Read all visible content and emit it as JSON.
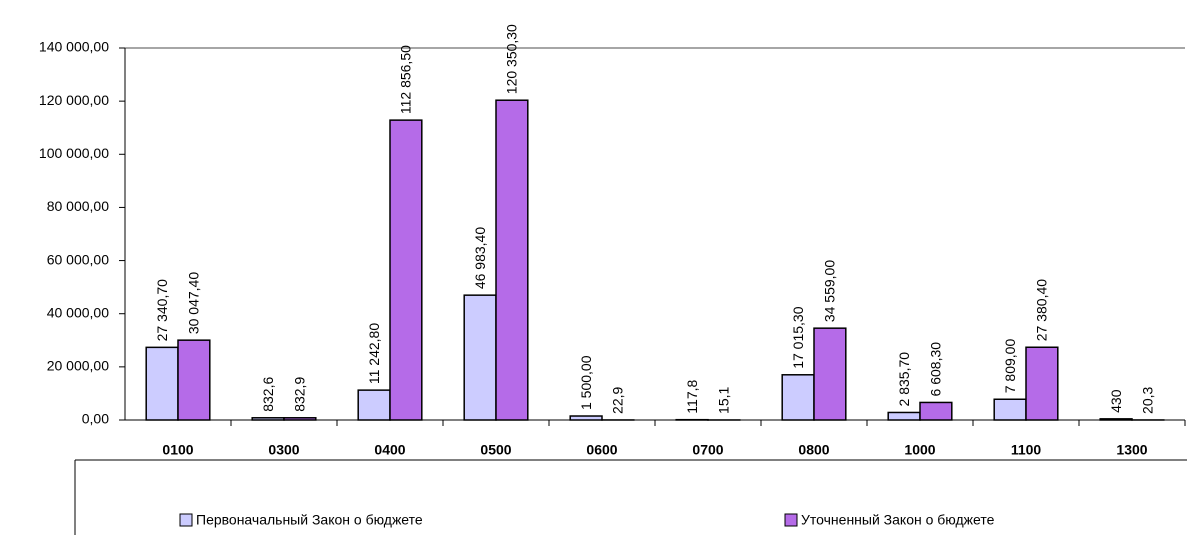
{
  "chart_data": {
    "type": "bar",
    "categories": [
      "0100",
      "0300",
      "0400",
      "0500",
      "0600",
      "0700",
      "0800",
      "1000",
      "1100",
      "1300"
    ],
    "series": [
      {
        "name": "Первоначальный Закон о бюджете",
        "color": "#ccccff",
        "values": [
          27340.7,
          832.6,
          11242.8,
          46983.4,
          1500,
          117.8,
          17015.3,
          2835.7,
          7809,
          430
        ],
        "value_labels": [
          "27 340,70",
          "832,6",
          "11 242,80",
          "46 983,40",
          "1 500,00",
          "117,8",
          "17 015,30",
          "2 835,70",
          "7 809,00",
          "430"
        ]
      },
      {
        "name": "Уточненный Закон о бюджете",
        "color": "#b56be8",
        "values": [
          30047.4,
          832.9,
          112856.5,
          120350.3,
          22.9,
          15.1,
          34559,
          6608.3,
          27380.4,
          20.3
        ],
        "value_labels": [
          "30 047,40",
          "832,9",
          "112 856,50",
          "120 350,30",
          "22,9",
          "15,1",
          "34 559,00",
          "6 608,30",
          "27 380,40",
          "20,3"
        ]
      }
    ],
    "ylim": [
      0,
      140000
    ],
    "yticks": [
      {
        "value": 0,
        "label": "0,00"
      },
      {
        "value": 20000,
        "label": "20 000,00"
      },
      {
        "value": 40000,
        "label": "40 000,00"
      },
      {
        "value": 60000,
        "label": "60 000,00"
      },
      {
        "value": 80000,
        "label": "80 000,00"
      },
      {
        "value": 100000,
        "label": "100 000,00"
      },
      {
        "value": 120000,
        "label": "120 000,00"
      },
      {
        "value": 140000,
        "label": "140 000,00"
      }
    ],
    "grid": false,
    "legend": "bottom"
  }
}
